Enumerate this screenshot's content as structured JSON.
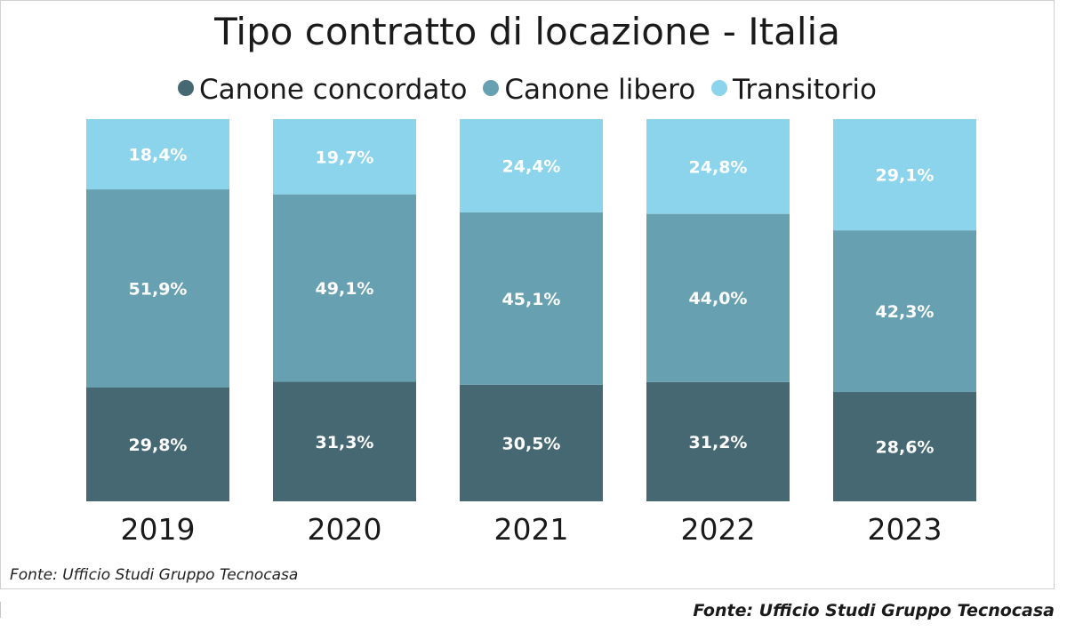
{
  "chart_data": {
    "type": "bar",
    "stacked": true,
    "normalized": true,
    "title": "Tipo contratto di locazione - Italia",
    "categories": [
      "2019",
      "2020",
      "2021",
      "2022",
      "2023"
    ],
    "series": [
      {
        "name": "Canone concordato",
        "values": [
          29.8,
          31.3,
          30.5,
          31.2,
          28.6
        ],
        "labels": [
          "29,8%",
          "31,3%",
          "30,5%",
          "31,2%",
          "28,6%"
        ],
        "color": "#456872"
      },
      {
        "name": "Canone libero",
        "values": [
          51.9,
          49.1,
          45.1,
          44.0,
          42.3
        ],
        "labels": [
          "51,9%",
          "49,1%",
          "45,1%",
          "44,0%",
          "42,3%"
        ],
        "color": "#67a0b1"
      },
      {
        "name": "Transitorio",
        "values": [
          18.4,
          19.7,
          24.4,
          24.8,
          29.1
        ],
        "labels": [
          "18,4%",
          "19,7%",
          "24,4%",
          "24,8%",
          "29,1%"
        ],
        "color": "#8bd4ec"
      }
    ],
    "legend_position": "top",
    "xlabel": "",
    "ylabel": ""
  },
  "source_inner": "Fonte: Ufficio Studi Gruppo Tecnocasa",
  "source_outer": "Fonte: Ufficio Studi Gruppo Tecnocasa"
}
